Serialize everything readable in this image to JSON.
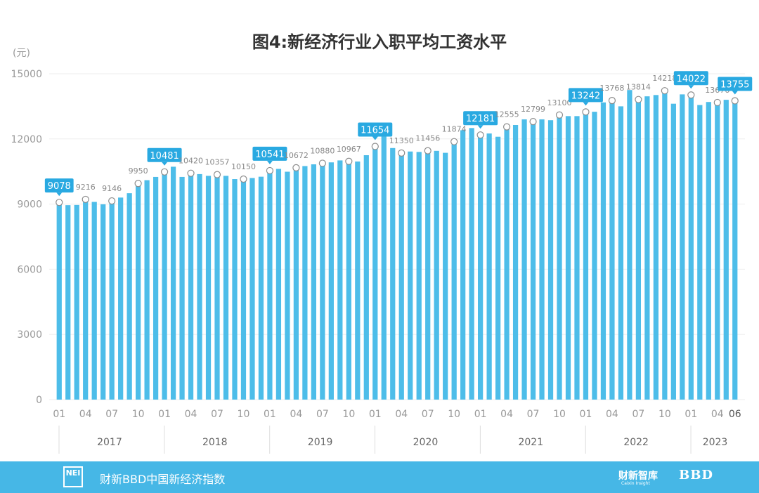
{
  "chart_data": {
    "type": "bar",
    "title": "图4:新经济行业入职平均工资水平",
    "y_unit_label": "(元)",
    "ylim": [
      0,
      15000
    ],
    "yticks": [
      "0",
      "3000",
      "6000",
      "9000",
      "12000",
      "15000"
    ],
    "ytick_values": [
      0,
      3000,
      6000,
      9000,
      12000,
      15000
    ],
    "month_tick_labels": [
      "01",
      "04",
      "07",
      "10",
      "01",
      "04",
      "07",
      "10",
      "01",
      "04",
      "07",
      "10",
      "01",
      "04",
      "07",
      "10",
      "01",
      "04",
      "07",
      "10",
      "01",
      "04",
      "07",
      "10",
      "01",
      "04",
      "06"
    ],
    "month_tick_indices": [
      0,
      3,
      6,
      9,
      12,
      15,
      18,
      21,
      24,
      27,
      30,
      33,
      36,
      39,
      42,
      45,
      48,
      51,
      54,
      57,
      60,
      63,
      66,
      69,
      72,
      75,
      77
    ],
    "years": [
      "2017",
      "2018",
      "2019",
      "2020",
      "2021",
      "2022",
      "2023"
    ],
    "categories": [
      "2017-01",
      "2017-02",
      "2017-03",
      "2017-04",
      "2017-05",
      "2017-06",
      "2017-07",
      "2017-08",
      "2017-09",
      "2017-10",
      "2017-11",
      "2017-12",
      "2018-01",
      "2018-02",
      "2018-03",
      "2018-04",
      "2018-05",
      "2018-06",
      "2018-07",
      "2018-08",
      "2018-09",
      "2018-10",
      "2018-11",
      "2018-12",
      "2019-01",
      "2019-02",
      "2019-03",
      "2019-04",
      "2019-05",
      "2019-06",
      "2019-07",
      "2019-08",
      "2019-09",
      "2019-10",
      "2019-11",
      "2019-12",
      "2020-01",
      "2020-02",
      "2020-03",
      "2020-04",
      "2020-05",
      "2020-06",
      "2020-07",
      "2020-08",
      "2020-09",
      "2020-10",
      "2020-11",
      "2020-12",
      "2021-01",
      "2021-02",
      "2021-03",
      "2021-04",
      "2021-05",
      "2021-06",
      "2021-07",
      "2021-08",
      "2021-09",
      "2021-10",
      "2021-11",
      "2021-12",
      "2022-01",
      "2022-02",
      "2022-03",
      "2022-04",
      "2022-05",
      "2022-06",
      "2022-07",
      "2022-08",
      "2022-09",
      "2022-10",
      "2022-11",
      "2022-12",
      "2023-01",
      "2023-02",
      "2023-03",
      "2023-04",
      "2023-05",
      "2023-06"
    ],
    "values": [
      9078,
      8950,
      8960,
      9216,
      9100,
      8990,
      9146,
      9300,
      9500,
      9950,
      10100,
      10250,
      10481,
      10720,
      10250,
      10420,
      10380,
      10300,
      10357,
      10300,
      10150,
      10150,
      10200,
      10260,
      10541,
      10620,
      10490,
      10672,
      10750,
      10830,
      10880,
      10920,
      11010,
      10967,
      10960,
      11250,
      11654,
      12180,
      11580,
      11350,
      11420,
      11400,
      11456,
      11450,
      11360,
      11874,
      12400,
      12500,
      12181,
      12250,
      12100,
      12555,
      12640,
      12900,
      12799,
      12900,
      12860,
      13100,
      13050,
      13050,
      13242,
      13250,
      13680,
      13768,
      13500,
      14250,
      13814,
      13960,
      14020,
      14218,
      13620,
      14050,
      14022,
      13560,
      13700,
      13676,
      13800,
      13755
    ],
    "label_indices": [
      0,
      3,
      6,
      9,
      12,
      15,
      18,
      21,
      24,
      27,
      30,
      33,
      36,
      39,
      42,
      45,
      48,
      51,
      54,
      57,
      60,
      63,
      66,
      69,
      72,
      75,
      77
    ],
    "highlight_indices": [
      0,
      12,
      24,
      36,
      48,
      60,
      72,
      77
    ],
    "colors": {
      "bar": "#4dbde9",
      "highlight_box": "#29a9e1",
      "label": "#888888",
      "axis_text": "#999999",
      "footer": "#46b7e6"
    }
  },
  "footer": {
    "logo_text": "NEI",
    "source": "财新BBD中国新经济指数",
    "brand": "财新智库",
    "brand_sub": "Caixin Insight",
    "bbd": "BBD"
  }
}
